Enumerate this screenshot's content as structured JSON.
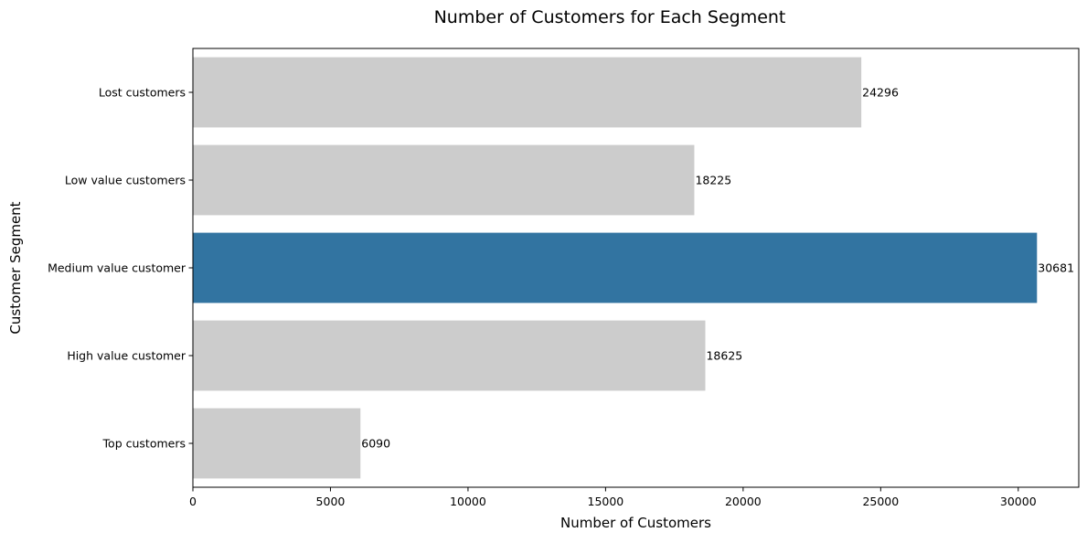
{
  "chart_data": {
    "type": "bar",
    "orientation": "horizontal",
    "title": "Number of Customers for Each Segment",
    "xlabel": "Number of Customers",
    "ylabel": "Customer Segment",
    "categories": [
      "Lost customers",
      "Low value customers",
      "Medium value customer",
      "High value customer",
      "Top customers"
    ],
    "values": [
      24296,
      18225,
      30681,
      18625,
      6090
    ],
    "data_labels": [
      "24296",
      "18225",
      "30681",
      "18625",
      "6090"
    ],
    "highlight_index": 2,
    "xlim": [
      0,
      32200
    ],
    "xticks": [
      0,
      5000,
      10000,
      15000,
      20000,
      25000,
      30000
    ],
    "xtick_labels": [
      "0",
      "5000",
      "10000",
      "15000",
      "20000",
      "25000",
      "30000"
    ],
    "grid": false,
    "legend": "none",
    "colors": {
      "default_bar": "#cccccc",
      "highlight_bar": "#3274a1",
      "axis": "#000000",
      "text": "#000000"
    }
  }
}
